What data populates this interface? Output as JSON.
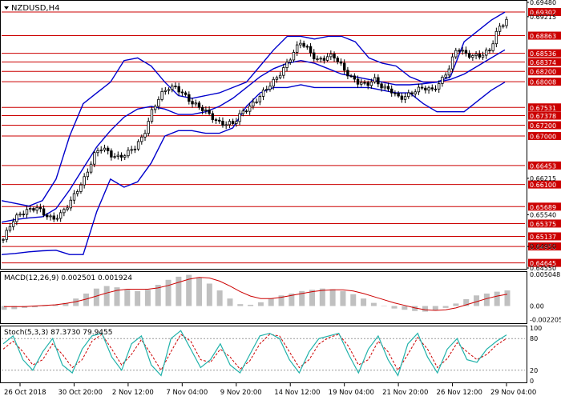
{
  "window": {
    "symbol_title": "NZDUSD,H4",
    "macd_title": "MACD(12,26,9) 0.002501 0.001924",
    "stoch_title": "Stoch(5,3,3) 87.3730 79.9455"
  },
  "colors": {
    "candles": "#000000",
    "bollinger": "#0000cc",
    "levels": "#cc0000",
    "level_tag_bg": "#cc0000",
    "level_tag_text": "#ffffff",
    "macd_histogram": "#c0c0c0",
    "macd_signal": "#cc0000",
    "stoch_main": "#20b2aa",
    "stoch_signal": "#cc0000",
    "grid_dotted": "#9a9a9a"
  },
  "chart_data": [
    {
      "type": "candlestick",
      "title": "NZDUSD,H4",
      "ylim": [
        0.6455,
        0.6948
      ],
      "x_tick_labels": [
        "26 Oct 2018",
        "30 Oct 20:00",
        "2 Nov 12:00",
        "7 Nov 04:00",
        "9 Nov 20:00",
        "14 Nov 12:00",
        "19 Nov 04:00",
        "21 Nov 20:00",
        "26 Nov 12:00",
        "29 Nov 04:00"
      ],
      "axis_price_labels": [
        "0.69480",
        "0.69215",
        "0.66215",
        "0.65540",
        "0.64950",
        "0.64550"
      ],
      "horizontal_levels": [
        "0.69302",
        "0.68863",
        "0.68536",
        "0.68374",
        "0.68200",
        "0.68008",
        "0.67531",
        "0.67378",
        "0.67200",
        "0.67000",
        "0.66453",
        "0.66100",
        "0.65689",
        "0.65375",
        "0.65137",
        "0.64950",
        "0.64645"
      ],
      "last_price": "0.69215",
      "close_path": [
        0.6508,
        0.654,
        0.6555,
        0.6562,
        0.6568,
        0.6555,
        0.6545,
        0.6555,
        0.6575,
        0.66,
        0.6625,
        0.6665,
        0.668,
        0.6665,
        0.666,
        0.6668,
        0.668,
        0.67,
        0.6745,
        0.6775,
        0.679,
        0.679,
        0.6775,
        0.676,
        0.6752,
        0.674,
        0.6725,
        0.6722,
        0.6725,
        0.6745,
        0.6755,
        0.6772,
        0.679,
        0.6805,
        0.6825,
        0.685,
        0.6875,
        0.686,
        0.684,
        0.6845,
        0.685,
        0.683,
        0.681,
        0.68,
        0.6795,
        0.6805,
        0.679,
        0.6785,
        0.677,
        0.6775,
        0.6785,
        0.679,
        0.6785,
        0.68,
        0.6825,
        0.6865,
        0.6852,
        0.6848,
        0.685,
        0.686,
        0.69,
        0.6915
      ],
      "bollinger": {
        "upper": [
          0.658,
          0.6575,
          0.657,
          0.658,
          0.662,
          0.67,
          0.676,
          0.678,
          0.68,
          0.684,
          0.6845,
          0.683,
          0.68,
          0.6775,
          0.677,
          0.6775,
          0.678,
          0.679,
          0.68,
          0.683,
          0.686,
          0.6885,
          0.6885,
          0.688,
          0.6885,
          0.6885,
          0.6875,
          0.6845,
          0.6835,
          0.683,
          0.681,
          0.68,
          0.68,
          0.681,
          0.6875,
          0.6895,
          0.6915,
          0.693
        ],
        "middle": [
          0.654,
          0.6545,
          0.6548,
          0.655,
          0.6565,
          0.66,
          0.664,
          0.668,
          0.671,
          0.6735,
          0.675,
          0.6755,
          0.675,
          0.674,
          0.674,
          0.6745,
          0.6755,
          0.677,
          0.679,
          0.681,
          0.6825,
          0.6835,
          0.684,
          0.6835,
          0.6825,
          0.6815,
          0.681,
          0.6805,
          0.68,
          0.6795,
          0.6795,
          0.6797,
          0.68,
          0.6805,
          0.6815,
          0.683,
          0.6845,
          0.686
        ],
        "lower": [
          0.648,
          0.6482,
          0.6485,
          0.6487,
          0.6488,
          0.648,
          0.648,
          0.656,
          0.662,
          0.6605,
          0.6615,
          0.665,
          0.67,
          0.671,
          0.671,
          0.6705,
          0.6705,
          0.6715,
          0.6755,
          0.678,
          0.679,
          0.679,
          0.6795,
          0.679,
          0.679,
          0.679,
          0.679,
          0.679,
          0.6785,
          0.678,
          0.678,
          0.676,
          0.6745,
          0.6745,
          0.6745,
          0.6765,
          0.6785,
          0.68
        ]
      }
    },
    {
      "type": "bar",
      "title": "MACD(12,26,9)",
      "main": "0.002501",
      "signal": "0.001924",
      "axis_labels": [
        "0.005048",
        "0.00",
        "-0.002205"
      ],
      "ylim": [
        -0.0025,
        0.0052
      ],
      "histogram": [
        -0.0006,
        -0.0005,
        -0.0003,
        -0.0002,
        0.0,
        0.0002,
        0.0005,
        0.0012,
        0.002,
        0.0028,
        0.0032,
        0.003,
        0.0026,
        0.0024,
        0.0026,
        0.0034,
        0.0042,
        0.0047,
        0.005,
        0.0046,
        0.0036,
        0.0025,
        0.0012,
        0.0003,
        0.0002,
        0.0006,
        0.0012,
        0.0017,
        0.002,
        0.0024,
        0.0026,
        0.0028,
        0.0027,
        0.0024,
        0.0019,
        0.0012,
        0.0005,
        0.0,
        -0.0004,
        -0.0006,
        -0.0008,
        -0.0009,
        -0.0007,
        -0.0003,
        0.0004,
        0.0011,
        0.0017,
        0.002,
        0.0023,
        0.0025
      ],
      "signal_line": [
        -0.0001,
        -0.0001,
        -0.0001,
        0.0,
        0.0001,
        0.0002,
        0.0004,
        0.0007,
        0.0011,
        0.0016,
        0.0021,
        0.0025,
        0.0027,
        0.0027,
        0.0027,
        0.0029,
        0.0033,
        0.0038,
        0.0043,
        0.0046,
        0.0045,
        0.004,
        0.0032,
        0.0023,
        0.0016,
        0.0012,
        0.0012,
        0.0014,
        0.0017,
        0.002,
        0.0023,
        0.0025,
        0.0026,
        0.0026,
        0.0024,
        0.002,
        0.0015,
        0.001,
        0.0005,
        0.0001,
        -0.0003,
        -0.0006,
        -0.0007,
        -0.0006,
        -0.0003,
        0.0002,
        0.0007,
        0.0012,
        0.0016,
        0.0019
      ]
    },
    {
      "type": "line",
      "title": "Stoch(5,3,3)",
      "main": "87.3730",
      "signal": "79.9455",
      "axis_labels": [
        "100",
        "80",
        "20",
        "0"
      ],
      "levels": [
        80,
        20
      ],
      "ylim": [
        0,
        100
      ],
      "k_line": [
        70,
        85,
        40,
        20,
        55,
        80,
        30,
        15,
        60,
        85,
        90,
        45,
        20,
        70,
        85,
        30,
        10,
        80,
        95,
        60,
        25,
        40,
        70,
        30,
        15,
        50,
        85,
        90,
        80,
        40,
        15,
        55,
        80,
        85,
        90,
        50,
        15,
        60,
        85,
        40,
        10,
        70,
        90,
        45,
        15,
        60,
        80,
        40,
        35,
        60,
        75,
        87
      ],
      "d_line": [
        60,
        75,
        55,
        30,
        40,
        70,
        50,
        25,
        40,
        75,
        88,
        60,
        30,
        50,
        78,
        50,
        20,
        55,
        88,
        75,
        40,
        35,
        60,
        45,
        22,
        38,
        70,
        88,
        85,
        55,
        25,
        40,
        70,
        82,
        88,
        65,
        30,
        40,
        75,
        55,
        20,
        50,
        82,
        60,
        25,
        42,
        72,
        55,
        40,
        50,
        68,
        80
      ]
    }
  ]
}
